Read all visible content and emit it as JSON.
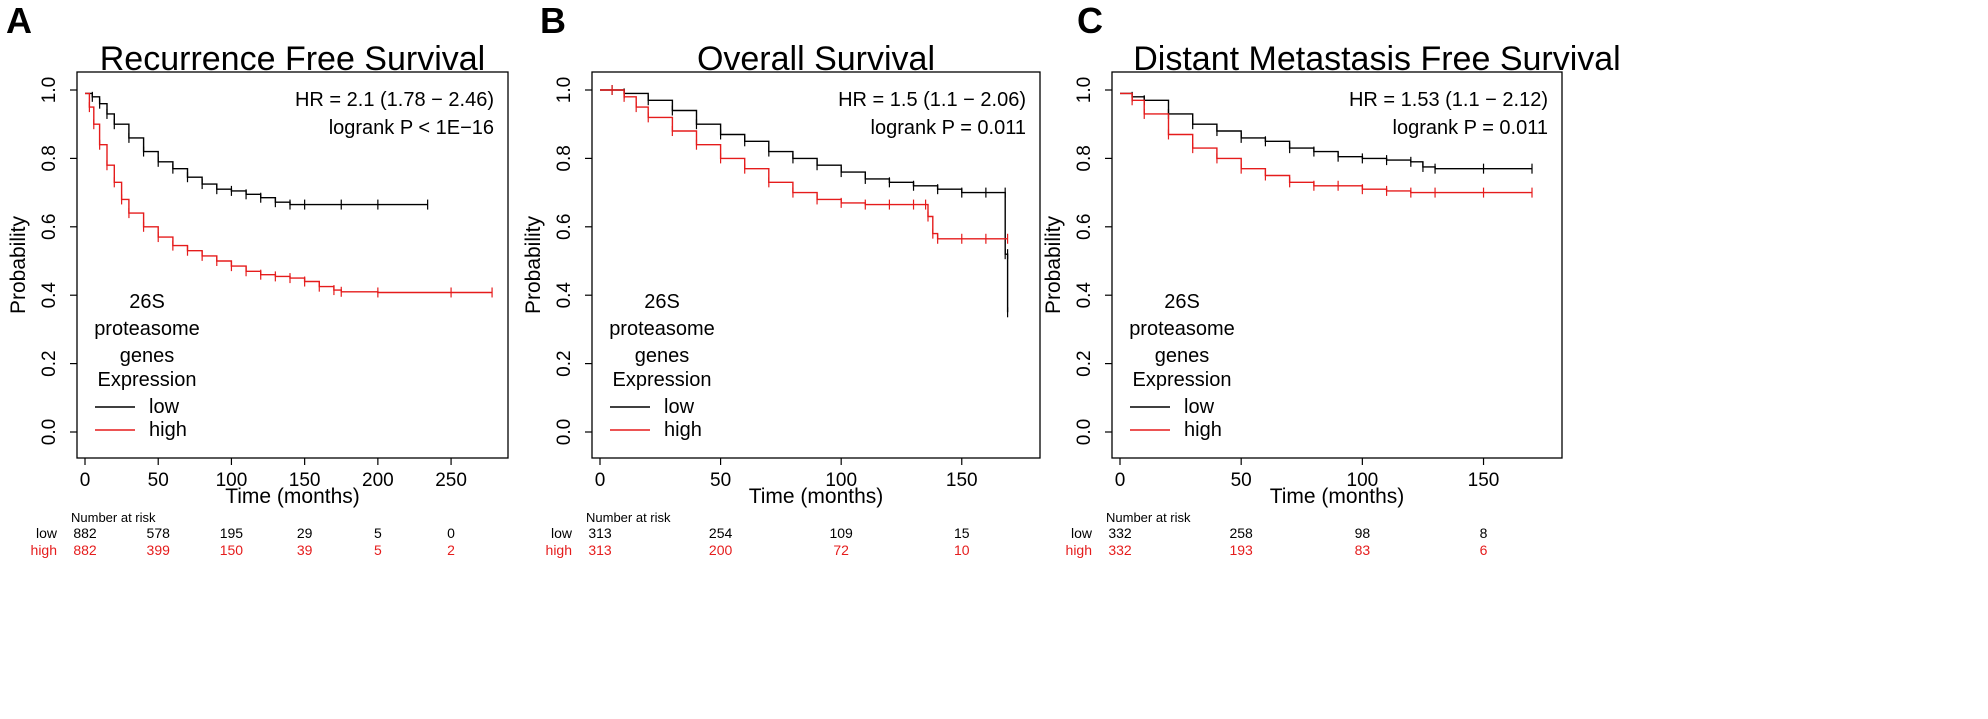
{
  "chart_data": [
    {
      "type": "line",
      "panel_label": "A",
      "title": "Recurrence Free Survival",
      "xlabel": "Time (months)",
      "ylabel": "Probability",
      "xlim": [
        0,
        280
      ],
      "ylim": [
        0,
        1
      ],
      "x_ticks": [
        0,
        50,
        100,
        150,
        200,
        250
      ],
      "x_tick_labels": [
        "0",
        "50",
        "100",
        "150",
        "200",
        "250"
      ],
      "y_ticks": [
        0,
        0.2,
        0.4,
        0.6,
        0.8,
        1.0
      ],
      "y_tick_labels": [
        "0.0",
        "0.2",
        "0.4",
        "0.6",
        "0.8",
        "1.0"
      ],
      "stats": {
        "hr": "HR = 2.1 (1.78 − 2.46)",
        "logrank": "logrank P < 1E−16"
      },
      "legend": {
        "title_lines": [
          "26S",
          "proteasome",
          "genes"
        ],
        "subtitle": "Expression",
        "low": "low",
        "high": "high"
      },
      "series": [
        {
          "name": "low",
          "color": "#000000",
          "x": [
            0,
            5,
            10,
            15,
            20,
            30,
            40,
            50,
            60,
            70,
            80,
            90,
            100,
            110,
            120,
            130,
            140,
            150,
            175,
            200,
            234
          ],
          "y": [
            0.99,
            0.98,
            0.96,
            0.93,
            0.9,
            0.86,
            0.82,
            0.79,
            0.77,
            0.745,
            0.725,
            0.71,
            0.705,
            0.695,
            0.685,
            0.672,
            0.665,
            0.665,
            0.665,
            0.665,
            0.665
          ]
        },
        {
          "name": "high",
          "color": "#e51c1c",
          "x": [
            0,
            3,
            6,
            10,
            15,
            20,
            25,
            30,
            40,
            50,
            60,
            70,
            80,
            90,
            100,
            110,
            120,
            130,
            140,
            150,
            160,
            170,
            175,
            200,
            250,
            278
          ],
          "y": [
            0.99,
            0.95,
            0.9,
            0.84,
            0.78,
            0.73,
            0.68,
            0.64,
            0.6,
            0.57,
            0.545,
            0.53,
            0.515,
            0.5,
            0.485,
            0.47,
            0.46,
            0.455,
            0.45,
            0.44,
            0.425,
            0.415,
            0.41,
            0.408,
            0.408,
            0.408
          ]
        }
      ],
      "risk_table": {
        "header": "Number at risk",
        "low_label": "low",
        "high_label": "high",
        "low": [
          "882",
          "578",
          "195",
          "29",
          "5",
          "0"
        ],
        "high": [
          "882",
          "399",
          "150",
          "39",
          "5",
          "2"
        ]
      }
    },
    {
      "type": "line",
      "panel_label": "B",
      "title": "Overall Survival",
      "xlabel": "Time (months)",
      "ylabel": "Probability",
      "xlim": [
        0,
        170
      ],
      "ylim": [
        0,
        1
      ],
      "x_ticks": [
        0,
        50,
        100,
        150
      ],
      "x_tick_labels": [
        "0",
        "50",
        "100",
        "150"
      ],
      "y_ticks": [
        0,
        0.2,
        0.4,
        0.6,
        0.8,
        1.0
      ],
      "y_tick_labels": [
        "0.0",
        "0.2",
        "0.4",
        "0.6",
        "0.8",
        "1.0"
      ],
      "stats": {
        "hr": "HR = 1.5 (1.1 − 2.06)",
        "logrank": "logrank P = 0.011"
      },
      "legend": {
        "title_lines": [
          "26S",
          "proteasome",
          "genes"
        ],
        "subtitle": "Expression",
        "low": "low",
        "high": "high"
      },
      "series": [
        {
          "name": "low",
          "color": "#000000",
          "x": [
            0,
            5,
            10,
            20,
            30,
            40,
            50,
            60,
            70,
            80,
            90,
            100,
            110,
            120,
            130,
            140,
            150,
            160,
            168,
            168,
            169,
            169
          ],
          "y": [
            1.0,
            1.0,
            0.99,
            0.97,
            0.94,
            0.9,
            0.87,
            0.85,
            0.82,
            0.8,
            0.78,
            0.76,
            0.74,
            0.73,
            0.72,
            0.71,
            0.7,
            0.7,
            0.7,
            0.52,
            0.52,
            0.35
          ]
        },
        {
          "name": "high",
          "color": "#e51c1c",
          "x": [
            0,
            5,
            10,
            15,
            20,
            30,
            40,
            50,
            60,
            70,
            80,
            90,
            100,
            110,
            120,
            130,
            135,
            136,
            138,
            140,
            150,
            160,
            169
          ],
          "y": [
            1.0,
            1.0,
            0.98,
            0.95,
            0.92,
            0.88,
            0.84,
            0.8,
            0.77,
            0.73,
            0.7,
            0.68,
            0.67,
            0.665,
            0.665,
            0.665,
            0.665,
            0.63,
            0.58,
            0.565,
            0.565,
            0.565,
            0.565
          ]
        }
      ],
      "risk_table": {
        "header": "Number at risk",
        "low_label": "low",
        "high_label": "high",
        "low": [
          "313",
          "254",
          "109",
          "15"
        ],
        "high": [
          "313",
          "200",
          "72",
          "10"
        ]
      }
    },
    {
      "type": "line",
      "panel_label": "C",
      "title": "Distant Metastasis Free Survival",
      "xlabel": "Time (months)",
      "ylabel": "Probability",
      "xlim": [
        0,
        170
      ],
      "ylim": [
        0,
        1
      ],
      "x_ticks": [
        0,
        50,
        100,
        150
      ],
      "x_tick_labels": [
        "0",
        "50",
        "100",
        "150"
      ],
      "y_ticks": [
        0,
        0.2,
        0.4,
        0.6,
        0.8,
        1.0
      ],
      "y_tick_labels": [
        "0.0",
        "0.2",
        "0.4",
        "0.6",
        "0.8",
        "1.0"
      ],
      "stats": {
        "hr": "HR = 1.53 (1.1 − 2.12)",
        "logrank": "logrank P = 0.011"
      },
      "legend": {
        "title_lines": [
          "26S",
          "proteasome",
          "genes"
        ],
        "subtitle": "Expression",
        "low": "low",
        "high": "high"
      },
      "series": [
        {
          "name": "low",
          "color": "#000000",
          "x": [
            0,
            5,
            10,
            20,
            30,
            40,
            50,
            60,
            70,
            80,
            90,
            100,
            110,
            120,
            125,
            130,
            150,
            170
          ],
          "y": [
            0.99,
            0.98,
            0.97,
            0.93,
            0.9,
            0.88,
            0.86,
            0.85,
            0.83,
            0.82,
            0.805,
            0.8,
            0.795,
            0.79,
            0.775,
            0.77,
            0.77,
            0.77
          ]
        },
        {
          "name": "high",
          "color": "#e51c1c",
          "x": [
            0,
            5,
            10,
            20,
            30,
            40,
            50,
            60,
            70,
            80,
            90,
            100,
            110,
            120,
            130,
            150,
            170
          ],
          "y": [
            0.99,
            0.97,
            0.93,
            0.87,
            0.83,
            0.8,
            0.77,
            0.75,
            0.73,
            0.72,
            0.72,
            0.71,
            0.705,
            0.7,
            0.7,
            0.7,
            0.7
          ]
        }
      ],
      "risk_table": {
        "header": "Number at risk",
        "low_label": "low",
        "high_label": "high",
        "low": [
          "332",
          "258",
          "98",
          "8"
        ],
        "high": [
          "332",
          "193",
          "83",
          "6"
        ]
      }
    }
  ]
}
